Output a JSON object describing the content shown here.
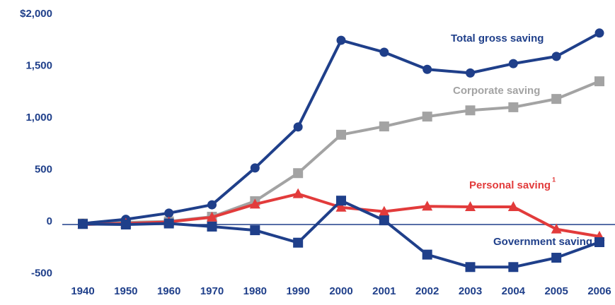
{
  "chart_data": {
    "type": "line",
    "categories": [
      "1940",
      "1950",
      "1960",
      "1970",
      "1980",
      "1990",
      "2000",
      "2001",
      "2002",
      "2003",
      "2004",
      "2005",
      "2006"
    ],
    "series": [
      {
        "name": "Total gross saving",
        "color": "#1f3f8a",
        "marker": "circle",
        "values": [
          10,
          50,
          110,
          190,
          545,
          940,
          1775,
          1660,
          1495,
          1460,
          1550,
          1620,
          1845
        ]
      },
      {
        "name": "Corporate saving",
        "color": "#a3a3a3",
        "marker": "square",
        "values": [
          10,
          20,
          30,
          75,
          225,
          495,
          865,
          945,
          1040,
          1100,
          1130,
          1210,
          1380
        ]
      },
      {
        "name": "Personal saving",
        "color": "#e23b3b",
        "marker": "triangle",
        "values": [
          0,
          10,
          25,
          70,
          195,
          295,
          165,
          125,
          175,
          170,
          170,
          -45,
          -115
        ]
      },
      {
        "name": "Government saving",
        "color": "#1f3f8a",
        "marker": "square",
        "values": [
          5,
          0,
          10,
          -20,
          -55,
          -175,
          230,
          40,
          -290,
          -410,
          -410,
          -320,
          -170
        ]
      }
    ],
    "footnote_marker": "1",
    "ylim": [
      -500,
      2000
    ],
    "yticks": [
      {
        "value": 2000,
        "label": "$2,000"
      },
      {
        "value": 1500,
        "label": "1,500"
      },
      {
        "value": 1000,
        "label": "1,000"
      },
      500,
      0,
      -500
    ],
    "grid": false
  }
}
